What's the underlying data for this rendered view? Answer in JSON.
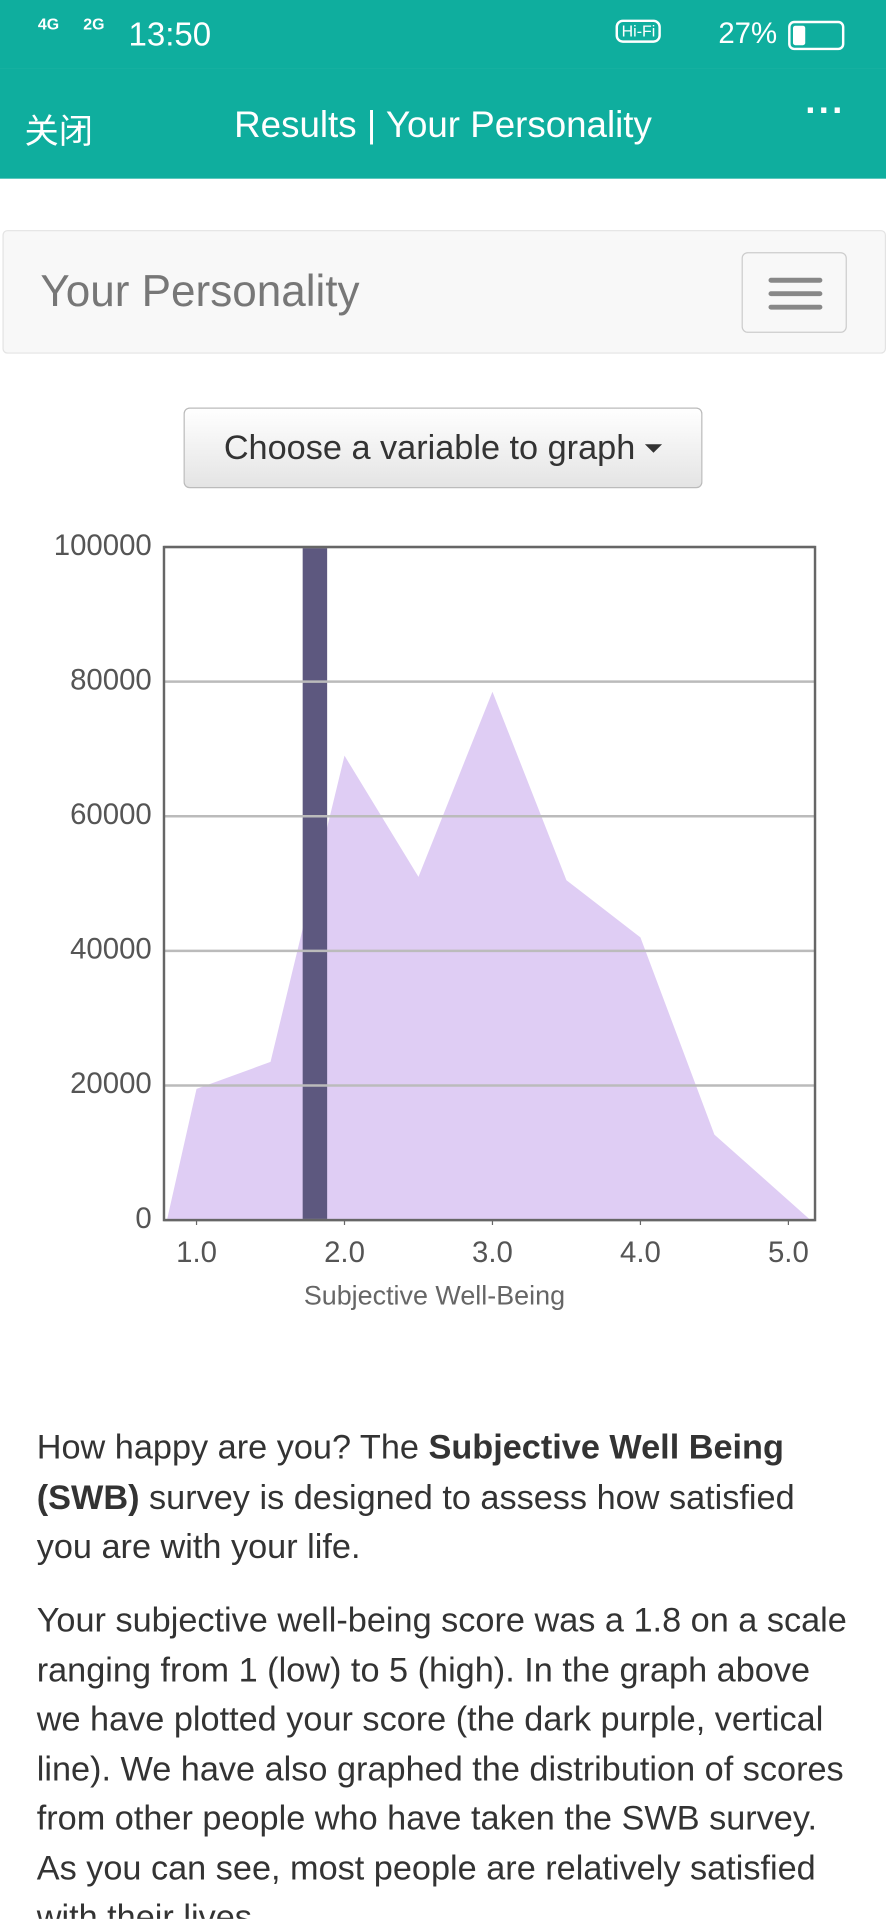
{
  "status_bar": {
    "network_1": "4G",
    "network_2": "2G",
    "time": "13:50",
    "hifi": "Hi-Fi",
    "battery": "27%"
  },
  "nav": {
    "close": "关闭",
    "title": "Results | Your Personality"
  },
  "navbar": {
    "brand": "Your Personality"
  },
  "dropdown": {
    "label": "Choose a variable to graph"
  },
  "chart_data": {
    "type": "area",
    "xlabel": "Subjective Well-Being",
    "x": [
      0.8,
      1.0,
      1.5,
      2.0,
      2.5,
      3.0,
      3.5,
      4.0,
      4.5,
      5.15
    ],
    "values": [
      0,
      19500,
      23500,
      69000,
      51000,
      78500,
      50500,
      42000,
      12700,
      0
    ],
    "color": "#dfcdf4",
    "marker": {
      "x": 1.8,
      "color": "#5d587f"
    },
    "xlim": [
      0.78,
      5.18
    ],
    "xticks": [
      {
        "value": 1,
        "label": "1.0"
      },
      {
        "value": 2,
        "label": "2.0"
      },
      {
        "value": 3,
        "label": "3.0"
      },
      {
        "value": 4,
        "label": "4.0"
      },
      {
        "value": 5,
        "label": "5.0"
      }
    ],
    "ylim": [
      0,
      100000
    ],
    "yticks": [
      0,
      20000,
      40000,
      60000,
      80000,
      100000
    ],
    "grid": true
  },
  "text": {
    "p1": [
      "How happy are you? The ",
      "Subjective Well Being (SWB)",
      " survey is designed to assess how satisfied you are with your life."
    ],
    "p2": "Your subjective well-being score was a 1.8 on a scale ranging from 1 (low) to 5 (high). In the graph above we have plotted your score (the dark purple, vertical line). We have also graphed the distribution of scores from other people who have taken the SWB survey. As you can see, most people are relatively satisfied with their lives."
  }
}
